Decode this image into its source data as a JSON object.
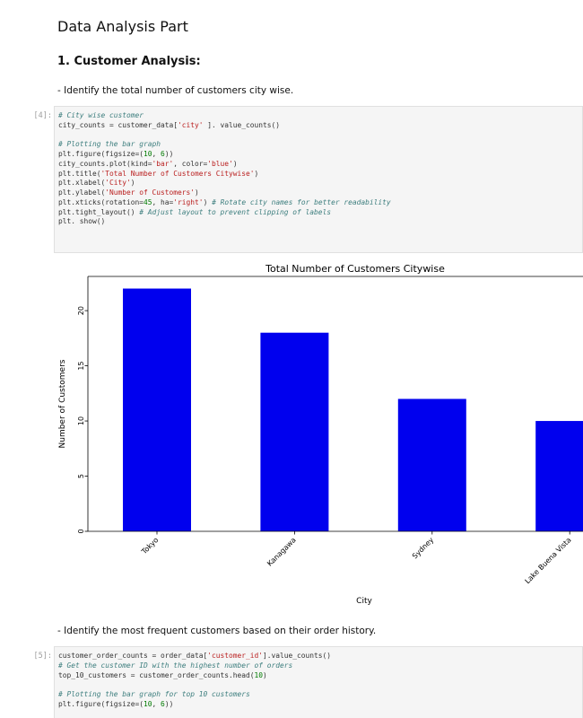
{
  "top_strip": "· ···· ·· ··    ········",
  "heading": "Data Analysis Part",
  "subheading": "1. Customer Analysis:",
  "task1": "- Identify the total number of customers city wise.",
  "task2": "- Identify the most frequent customers based on their order history.",
  "cell1": {
    "prompt": "[4]:",
    "lines": [
      [
        [
          "cm",
          "# City wise customer"
        ]
      ],
      [
        [
          "",
          "city_counts = customer_data["
        ],
        [
          "st",
          "'city'"
        ],
        [
          "",
          " ]. value_counts()"
        ]
      ],
      [],
      [
        [
          "cm",
          "# Plotting the bar graph"
        ]
      ],
      [
        [
          "",
          "plt.figure(figsize=("
        ],
        [
          "nu",
          "10"
        ],
        [
          "",
          ", "
        ],
        [
          "nu",
          "6"
        ],
        [
          "",
          "))"
        ]
      ],
      [
        [
          "",
          "city_counts.plot(kind="
        ],
        [
          "st",
          "'bar'"
        ],
        [
          "",
          ", color="
        ],
        [
          "st",
          "'blue'"
        ],
        [
          "",
          ")"
        ]
      ],
      [
        [
          "",
          "plt.title("
        ],
        [
          "st",
          "'Total Number of Customers Citywise'"
        ],
        [
          "",
          ")"
        ]
      ],
      [
        [
          "",
          "plt.xlabel("
        ],
        [
          "st",
          "'City'"
        ],
        [
          "",
          ")"
        ]
      ],
      [
        [
          "",
          "plt.ylabel("
        ],
        [
          "st",
          "'Number of Customers'"
        ],
        [
          "",
          ")"
        ]
      ],
      [
        [
          "",
          "plt.xticks(rotation="
        ],
        [
          "nu",
          "45"
        ],
        [
          "",
          ", ha="
        ],
        [
          "st",
          "'right'"
        ],
        [
          "",
          ") "
        ],
        [
          "cm",
          "# Rotate city names for better readability"
        ]
      ],
      [
        [
          "",
          "plt.tight_layout() "
        ],
        [
          "cm",
          "# Adjust layout to prevent clipping of labels"
        ]
      ],
      [
        [
          "",
          "plt. show()"
        ]
      ]
    ]
  },
  "cell2": {
    "prompt": "[5]:",
    "lines": [
      [
        [
          "",
          "customer_order_counts = order_data["
        ],
        [
          "st",
          "'customer_id'"
        ],
        [
          "",
          "].value_counts()"
        ]
      ],
      [
        [
          "cm",
          "# Get the customer ID with the highest number of orders"
        ]
      ],
      [
        [
          "",
          "top_10_customers = customer_order_counts.head("
        ],
        [
          "nu",
          "10"
        ],
        [
          "",
          ")"
        ]
      ],
      [],
      [
        [
          "cm",
          "# Plotting the bar graph for top 10 customers"
        ]
      ],
      [
        [
          "",
          "plt.figure(figsize=("
        ],
        [
          "nu",
          "10"
        ],
        [
          "",
          ", "
        ],
        [
          "nu",
          "6"
        ],
        [
          "",
          "))"
        ]
      ]
    ]
  },
  "chart_data": {
    "type": "bar",
    "title": "Total Number of Customers Citywise",
    "xlabel": "City",
    "ylabel": "Number of Customers",
    "categories": [
      "Tokyo",
      "Kanagawa",
      "Sydney",
      "Lake Buena Vista"
    ],
    "values": [
      22,
      18,
      12,
      10
    ],
    "yticks": [
      0,
      5,
      10,
      15,
      20
    ],
    "ylim": [
      0,
      23.1
    ],
    "bar_color": "#0000ee",
    "grid": false,
    "legend": "none"
  }
}
